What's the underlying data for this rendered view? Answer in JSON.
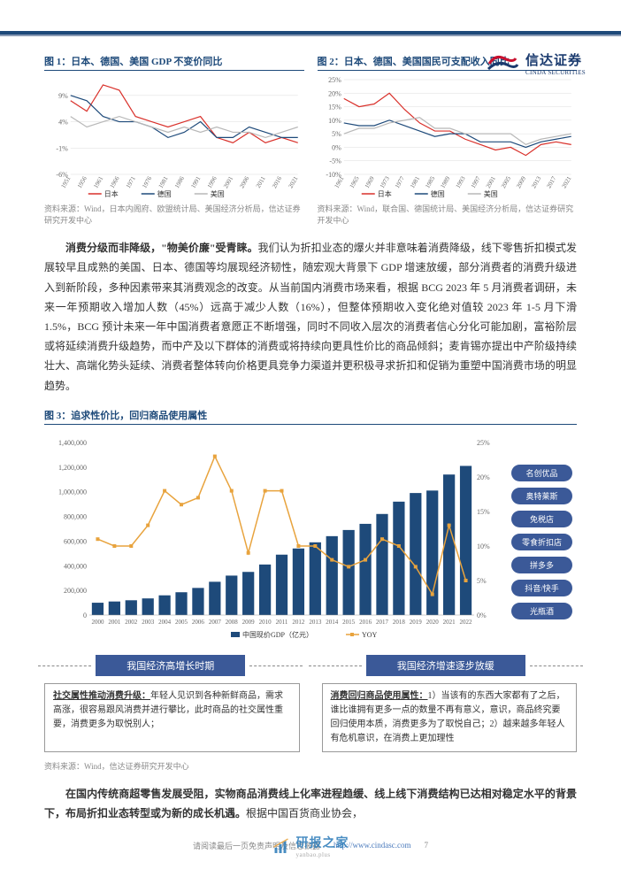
{
  "header": {
    "logo_cn": "信达证券",
    "logo_en": "CINDA SECURITIES"
  },
  "chart1": {
    "title": "图 1：日本、德国、美国 GDP 不变价同比",
    "type": "line",
    "xlabels": [
      "1951",
      "1956",
      "1961",
      "1966",
      "1971",
      "1976",
      "1981",
      "1986",
      "1991",
      "1996",
      "2001",
      "2006",
      "2011",
      "2016",
      "2021"
    ],
    "ylabels": [
      "-6%",
      "-1%",
      "4%",
      "9%"
    ],
    "ylim": [
      -6,
      12
    ],
    "series": [
      {
        "name": "日本",
        "color": "#d9302a",
        "data": [
          8,
          6,
          11,
          10,
          5,
          4,
          3,
          4,
          5,
          1,
          0,
          2,
          0,
          1,
          0
        ]
      },
      {
        "name": "德国",
        "color": "#1e4a7a",
        "data": [
          9,
          8,
          5,
          4,
          4,
          3,
          1,
          2,
          4,
          1,
          1,
          3,
          2,
          1,
          1
        ]
      },
      {
        "name": "美国",
        "color": "#b8b8b8",
        "data": [
          5,
          3,
          4,
          5,
          4,
          3,
          2,
          3,
          2,
          3,
          2,
          2,
          1,
          2,
          3
        ]
      }
    ],
    "source": "资料来源：Wind，日本内阁府、欧盟统计局、美国经济分析局，信达证券研究开发中心"
  },
  "chart2": {
    "title": "图 2：日本、德国、美国国民可支配收入同比",
    "type": "line",
    "xlabels": [
      "1961",
      "1965",
      "1969",
      "1973",
      "1977",
      "1981",
      "1985",
      "1989",
      "1993",
      "1997",
      "2001",
      "2005",
      "2009",
      "2013",
      "2017",
      "2021"
    ],
    "ylabels": [
      "-10%",
      "-5%",
      "0%",
      "5%",
      "10%",
      "15%",
      "20%",
      "25%"
    ],
    "ylim": [
      -10,
      25
    ],
    "series": [
      {
        "name": "日本",
        "color": "#d9302a",
        "data": [
          18,
          15,
          16,
          20,
          14,
          9,
          6,
          6,
          3,
          1,
          -1,
          0,
          -3,
          1,
          2,
          1
        ]
      },
      {
        "name": "德国",
        "color": "#1e4a7a",
        "data": [
          9,
          8,
          8,
          10,
          8,
          6,
          4,
          5,
          5,
          2,
          2,
          2,
          0,
          2,
          3,
          4
        ]
      },
      {
        "name": "美国",
        "color": "#b8b8b8",
        "data": [
          5,
          7,
          7,
          9,
          10,
          11,
          7,
          7,
          5,
          5,
          5,
          5,
          1,
          3,
          4,
          5
        ]
      }
    ],
    "source": "资料来源：Wind，联合国、德国统计局、美国经济分析局，信达证券研究开发中心"
  },
  "body_para": {
    "bold": "消费分级而非降级，\"物美价廉\"受青睐。",
    "text": "我们认为折扣业态的爆火并非意味着消费降级，线下零售折扣模式发展较早且成熟的美国、日本、德国等均展现经济韧性，随宏观大背景下 GDP 增速放缓，部分消费者的消费升级进入到新阶段，多种因素带来其消费观念的改变。从当前国内消费市场来看，根据 BCG 2023 年 5 月消费者调研，未来一年预期收入增加人数（45%）远高于减少人数（16%），但整体预期收入变化绝对值较 2023 年 1-5 月下滑 1.5%，BCG 预计未来一年中国消费者意愿正不断增强，同时不同收入层次的消费者信心分化可能加剧，富裕阶层或将延续消费升级趋势，而中产及以下群体的消费或将持续向更具性价比的商品倾斜；麦肯锡亦提出中产阶级持续壮大、高端化势头延续、消费者整体转向价格更具竞争力渠道并更积极寻求折扣和促销为重塑中国消费市场的明显趋势。"
  },
  "chart3": {
    "title": "图 3：追求性价比，回归商品使用属性",
    "type": "combo",
    "xlabels": [
      "2000",
      "2001",
      "2002",
      "2003",
      "2004",
      "2005",
      "2006",
      "2007",
      "2008",
      "2009",
      "2010",
      "2011",
      "2012",
      "2013",
      "2014",
      "2015",
      "2016",
      "2017",
      "2018",
      "2019",
      "2020",
      "2021",
      "2022"
    ],
    "ylabels_left": [
      "0",
      "200,000",
      "400,000",
      "600,000",
      "800,000",
      "1,000,000",
      "1,200,000",
      "1,400,000"
    ],
    "ylabels_right": [
      "0%",
      "5%",
      "10%",
      "15%",
      "20%",
      "25%"
    ],
    "bar": {
      "name": "中国现价GDP（亿元）",
      "color": "#1e4a7a",
      "data": [
        100000,
        110000,
        120000,
        135000,
        160000,
        185000,
        220000,
        270000,
        320000,
        350000,
        410000,
        490000,
        540000,
        590000,
        640000,
        690000,
        740000,
        820000,
        920000,
        990000,
        1010000,
        1140000,
        1210000
      ]
    },
    "line": {
      "name": "YOY",
      "color": "#e8a33d",
      "data": [
        11,
        10,
        10,
        13,
        18,
        16,
        17,
        23,
        18,
        9,
        18,
        18,
        10,
        10,
        8,
        7,
        8,
        11,
        10,
        7,
        3,
        13,
        5
      ]
    },
    "pills": [
      "名创优品",
      "奥特莱斯",
      "免税店",
      "零食折扣店",
      "拼多多",
      "抖音/快手",
      "光瓶酒"
    ],
    "source": "资料来源：Wind，信达证券研究开发中心"
  },
  "phases": {
    "left": {
      "label": "我国经济高增长时期",
      "box_under": "社交属性推动消费升级：",
      "box_text": "年轻人见识到各种新鲜商品，需求高涨，很容易跟风消费并进行攀比，此时商品的社交属性重要，消费更多为取悦别人；"
    },
    "right": {
      "label": "我国经济增速逐步放缓",
      "box_under": "消费回归商品使用属性：",
      "box_text": "1）当该有的东西大家都有了之后，谁比谁拥有更多一点的数量不再有意义，意识，商品终究要回归使用本质，消费更多为了取悦自己；2）越来越多年轻人有危机意识，在消费上更加理性"
    }
  },
  "footer_para": {
    "bold": "在国内传统商超零售发展受阻，实物商品消费线上化率进程趋缓、线上线下消费结构已达相对稳定水平的背景下，布局折扣业态转型或为新的成长机遇。",
    "text": "根据中国百货商业协会，"
  },
  "page_footer": {
    "text": "请阅读最后一页免责声明及信息披露",
    "url": "http://www.cindasc.com",
    "page": "7"
  },
  "watermark": {
    "cn": "研报之家",
    "en": "yanbao.plus"
  }
}
